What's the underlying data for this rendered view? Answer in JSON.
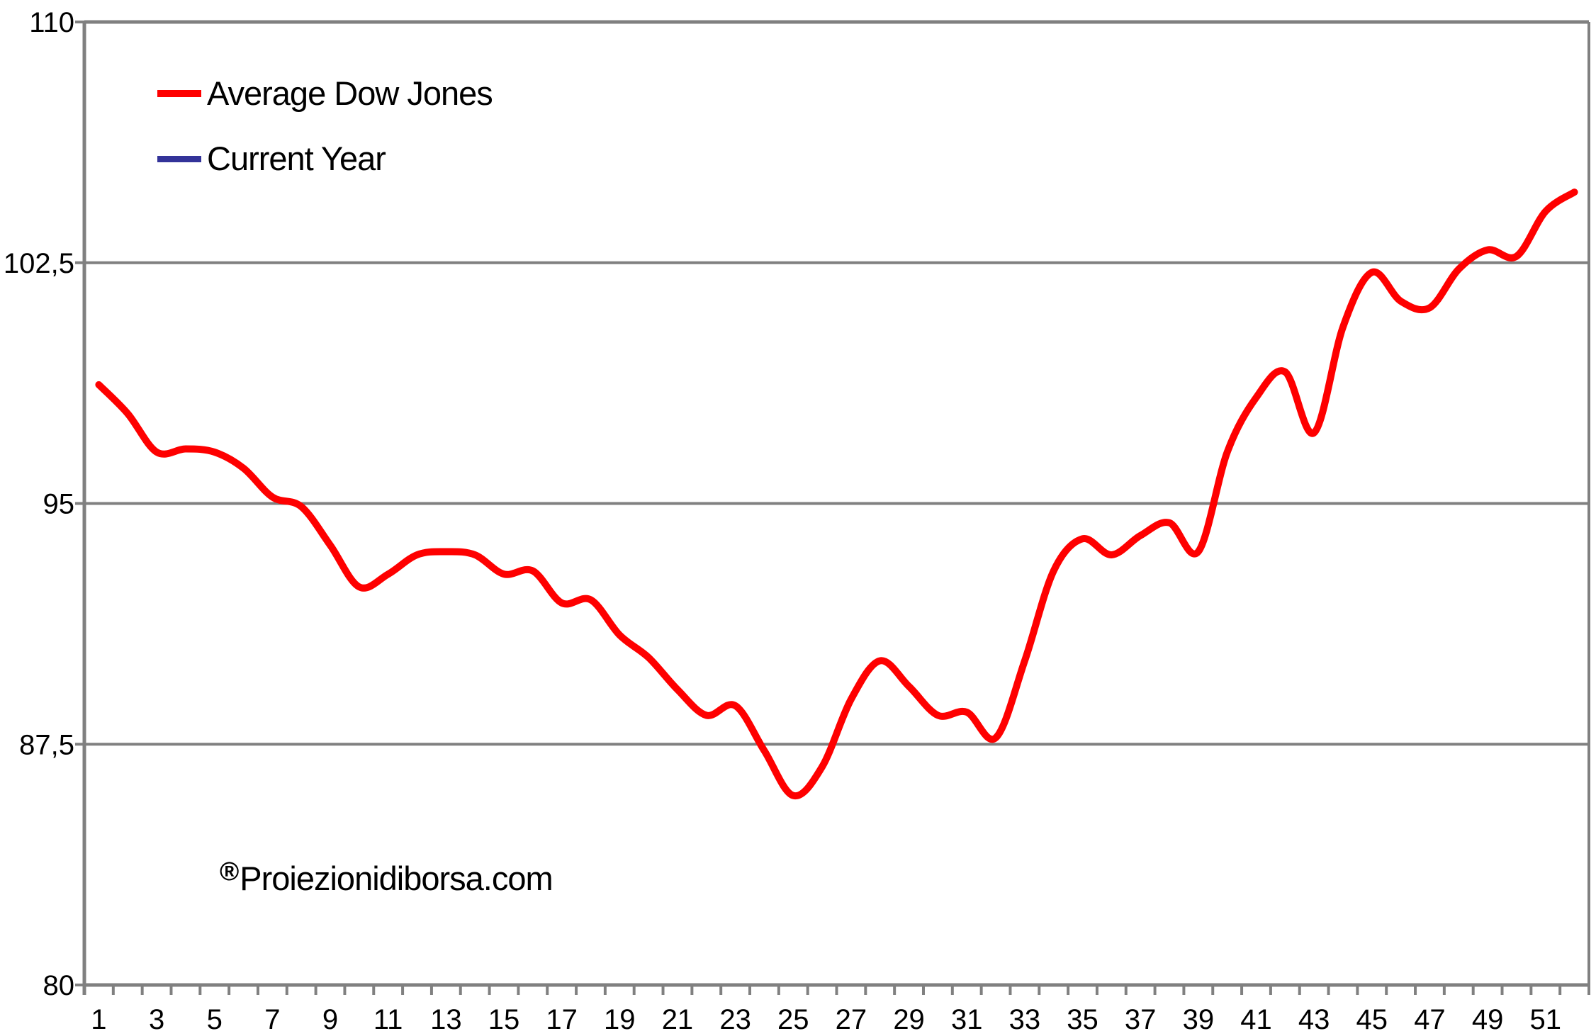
{
  "watermark": {
    "symbol": "®",
    "text": "Proiezionidiborsa.com"
  },
  "chart_data": {
    "type": "line",
    "title": "",
    "categories": [
      1,
      2,
      3,
      4,
      5,
      6,
      7,
      8,
      9,
      10,
      11,
      12,
      13,
      14,
      15,
      16,
      17,
      18,
      19,
      20,
      21,
      22,
      23,
      24,
      25,
      26,
      27,
      28,
      29,
      30,
      31,
      32,
      33,
      34,
      35,
      36,
      37,
      38,
      39,
      40,
      41,
      42,
      43,
      44,
      45,
      46,
      47,
      48,
      49,
      50,
      51,
      52
    ],
    "x_tick_labels": [
      "1",
      "3",
      "5",
      "7",
      "9",
      "11",
      "13",
      "15",
      "17",
      "19",
      "21",
      "23",
      "25",
      "27",
      "29",
      "31",
      "33",
      "35",
      "37",
      "39",
      "41",
      "43",
      "45",
      "47",
      "49",
      "51"
    ],
    "y_ticks": [
      {
        "value": 80,
        "label": "80"
      },
      {
        "value": 87.5,
        "label": "87,5"
      },
      {
        "value": 95,
        "label": "95"
      },
      {
        "value": 102.5,
        "label": "102,5"
      },
      {
        "value": 110,
        "label": "110"
      }
    ],
    "ylim": [
      80,
      110
    ],
    "grid": "horizontal",
    "gridline_color": "#808080",
    "axis_color": "#808080",
    "tick_label_color": "#000000",
    "legend_position": "top-left-inside",
    "series": [
      {
        "name": "Average Dow Jones",
        "color": "#fe0000",
        "smooth": true,
        "values": [
          98.7,
          97.8,
          96.6,
          96.7,
          96.6,
          96.1,
          95.2,
          94.9,
          93.7,
          92.4,
          92.8,
          93.4,
          93.5,
          93.4,
          92.8,
          92.9,
          91.9,
          92.0,
          90.9,
          90.2,
          89.2,
          88.4,
          88.7,
          87.3,
          85.9,
          86.8,
          88.9,
          90.1,
          89.3,
          88.4,
          88.5,
          87.7,
          90.1,
          92.9,
          93.9,
          93.4,
          94.0,
          94.4,
          93.5,
          96.6,
          98.3,
          99.1,
          97.2,
          100.5,
          102.2,
          101.3,
          101.1,
          102.3,
          102.9,
          102.7,
          104.1,
          104.7
        ]
      },
      {
        "name": "Current Year",
        "color": "#333399",
        "smooth": true,
        "values": []
      }
    ]
  }
}
